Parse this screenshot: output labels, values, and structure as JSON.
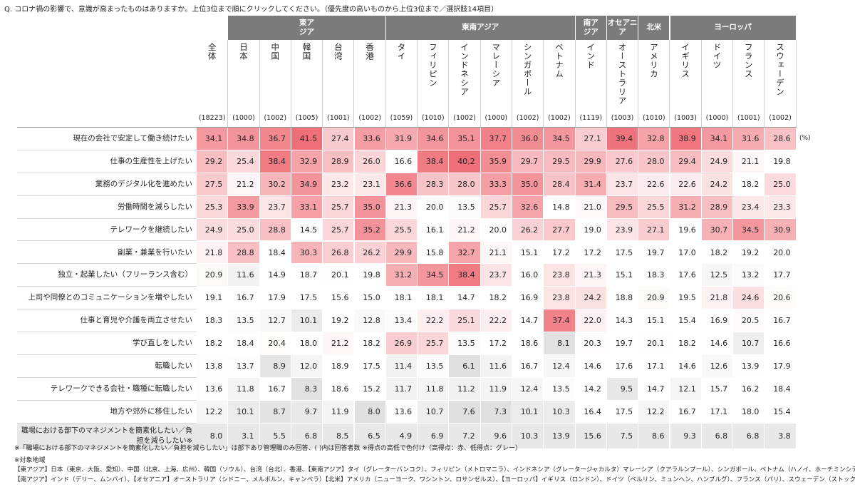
{
  "question": "Q. コロナ禍の影響で、意識が高まったものはありますか。上位3位まで順にクリックしてください。（優先度の高いものから上位3位まで／選択肢14項目）",
  "unit": "(%)",
  "chart_data": {
    "type": "heatmap",
    "groups": [
      {
        "name": "",
        "span": 1
      },
      {
        "name": "東アジア",
        "span": 5
      },
      {
        "name": "東南アジア",
        "span": 6
      },
      {
        "name": "南アジア",
        "span": 1
      },
      {
        "name": "オセアニア",
        "span": 1
      },
      {
        "name": "北米",
        "span": 1
      },
      {
        "name": "ヨーロッパ",
        "span": 4
      }
    ],
    "columns": [
      "全体",
      "日本",
      "中国",
      "韓国",
      "台湾",
      "香港",
      "タイ",
      "フィリピン",
      "インドネシア",
      "マレーシア",
      "シンガポール",
      "ベトナム",
      "インド",
      "オーストラリア",
      "アメリカ",
      "イギリス",
      "ドイツ",
      "フランス",
      "スウェーデン"
    ],
    "n": [
      "(18223)",
      "(1000)",
      "(1002)",
      "(1005)",
      "(1001)",
      "(1002)",
      "(1059)",
      "(1010)",
      "(1002)",
      "(1000)",
      "(1002)",
      "(1002)",
      "(1119)",
      "(1003)",
      "(1010)",
      "(1003)",
      "(1000)",
      "(1001)",
      "(1002)"
    ],
    "rows": [
      "現在の会社で安定して働き続けたい",
      "仕事の生産性を上げたい",
      "業務のデジタル化を進めたい",
      "労働時間を減らしたい",
      "テレワークを継続したい",
      "副業・兼業を行いたい",
      "独立・起業したい（フリーランス含む）",
      "上司や同僚とのコミュニケーションを増やしたい",
      "仕事と育児や介護を両立させたい",
      "学び直しをしたい",
      "転職したい",
      "テレワークできる会社・職種に転職したい",
      "地方や郊外に移住したい",
      "職場における部下のマネジメントを簡素化したい／負担を減らしたい※"
    ],
    "values": [
      [
        34.1,
        34.8,
        36.7,
        41.5,
        27.4,
        33.6,
        31.9,
        34.6,
        35.1,
        37.7,
        36.0,
        34.5,
        27.1,
        39.4,
        32.8,
        38.9,
        34.1,
        31.6,
        28.6
      ],
      [
        29.2,
        25.4,
        38.4,
        32.9,
        28.9,
        26.0,
        16.6,
        38.4,
        40.2,
        35.9,
        29.7,
        29.5,
        29.9,
        27.6,
        28.0,
        29.4,
        24.9,
        21.1,
        19.8
      ],
      [
        27.5,
        21.2,
        30.2,
        34.9,
        23.2,
        23.1,
        36.6,
        28.3,
        28.0,
        33.3,
        35.0,
        28.4,
        31.4,
        23.7,
        22.6,
        22.6,
        24.2,
        18.2,
        25.0
      ],
      [
        25.3,
        33.9,
        23.7,
        33.1,
        25.7,
        35.0,
        21.3,
        20.0,
        13.5,
        25.7,
        32.6,
        14.8,
        21.0,
        29.5,
        25.5,
        31.2,
        28.9,
        23.4,
        23.3
      ],
      [
        24.9,
        25.0,
        28.8,
        14.5,
        25.7,
        35.2,
        25.5,
        16.1,
        21.2,
        20.0,
        26.2,
        27.7,
        19.0,
        23.9,
        27.1,
        19.6,
        30.7,
        34.5,
        30.9
      ],
      [
        21.8,
        28.8,
        18.4,
        30.3,
        26.8,
        26.2,
        29.9,
        15.8,
        32.7,
        21.1,
        15.1,
        17.2,
        17.2,
        17.5,
        19.7,
        17.0,
        18.2,
        19.2,
        20.0
      ],
      [
        20.9,
        11.6,
        14.9,
        18.7,
        20.1,
        19.8,
        31.2,
        34.5,
        38.4,
        23.7,
        16.0,
        23.8,
        21.3,
        15.1,
        18.3,
        17.6,
        12.5,
        13.2,
        17.7
      ],
      [
        19.1,
        16.7,
        17.9,
        17.5,
        15.6,
        15.0,
        18.1,
        18.1,
        14.7,
        18.2,
        16.9,
        23.8,
        24.2,
        18.8,
        20.9,
        19.5,
        21.8,
        24.6,
        20.6
      ],
      [
        18.3,
        13.5,
        12.7,
        10.1,
        19.2,
        12.8,
        13.4,
        22.2,
        25.1,
        22.2,
        14.7,
        37.4,
        22.0,
        14.3,
        15.1,
        15.4,
        16.9,
        20.5,
        16.7
      ],
      [
        18.2,
        18.4,
        20.4,
        18.0,
        21.2,
        18.2,
        26.9,
        25.7,
        13.5,
        17.2,
        18.6,
        8.1,
        20.3,
        19.7,
        20.1,
        18.2,
        14.6,
        10.7,
        16.6
      ],
      [
        13.8,
        13.7,
        8.9,
        12.0,
        18.9,
        17.5,
        11.4,
        13.5,
        6.1,
        11.6,
        16.7,
        12.4,
        14.6,
        17.6,
        17.1,
        14.6,
        12.6,
        13.9,
        17.9
      ],
      [
        13.6,
        11.8,
        16.7,
        8.3,
        18.6,
        15.2,
        11.7,
        11.8,
        11.2,
        11.9,
        12.4,
        13.5,
        14.2,
        9.5,
        14.7,
        12.1,
        15.7,
        16.2,
        18.4
      ],
      [
        12.2,
        10.1,
        8.7,
        9.7,
        11.9,
        8.0,
        13.6,
        10.7,
        7.6,
        7.3,
        10.1,
        10.3,
        16.4,
        17.5,
        12.2,
        16.7,
        17.1,
        18.0,
        15.4
      ],
      [
        8.0,
        3.1,
        5.5,
        6.8,
        8.5,
        6.5,
        4.9,
        6.9,
        7.2,
        9.6,
        10.3,
        13.9,
        15.6,
        7.5,
        8.6,
        9.3,
        6.8,
        6.8,
        3.8
      ]
    ],
    "colors": {
      "high": "#ef6f78",
      "low": "#e0e0e0",
      "base": "#ffffff"
    }
  },
  "footnotes": [
    "※「職場における部下のマネジメントを簡素化したい／負担を減らしたい」は部下あり管理職のみ回答、( )内は回答者数 ※得点の高低で色付け（高得点：赤、低得点：グレー）",
    "※対象地域",
    "【東アジア】日本（東京、大阪、愛知）、中国（北京、上海、広州）、韓国（ソウル）、台湾（台北）、香港、【東南アジア】タイ（グレーターバンコク）、フィリピン（メトロマニラ）、インドネシア（グレータージャカルタ）マレーシア（クアラルンプール）、シンガポール、ベトナム（ハノイ、ホーチミンシティ）",
    "【南アジア】インド（デリー、ムンバイ）、【オセアニア】オーストラリア（シドニー、メルボルン、キャンベラ）【北米】アメリカ（ニューヨーク、ワシントン、ロサンゼルス）、【ヨーロッパ】イギリス（ロンドン）、ドイツ（ベルリン、ミュンヘン、ハンブルグ）、フランス（パリ）、スウェーデン（ストックホルム）"
  ]
}
